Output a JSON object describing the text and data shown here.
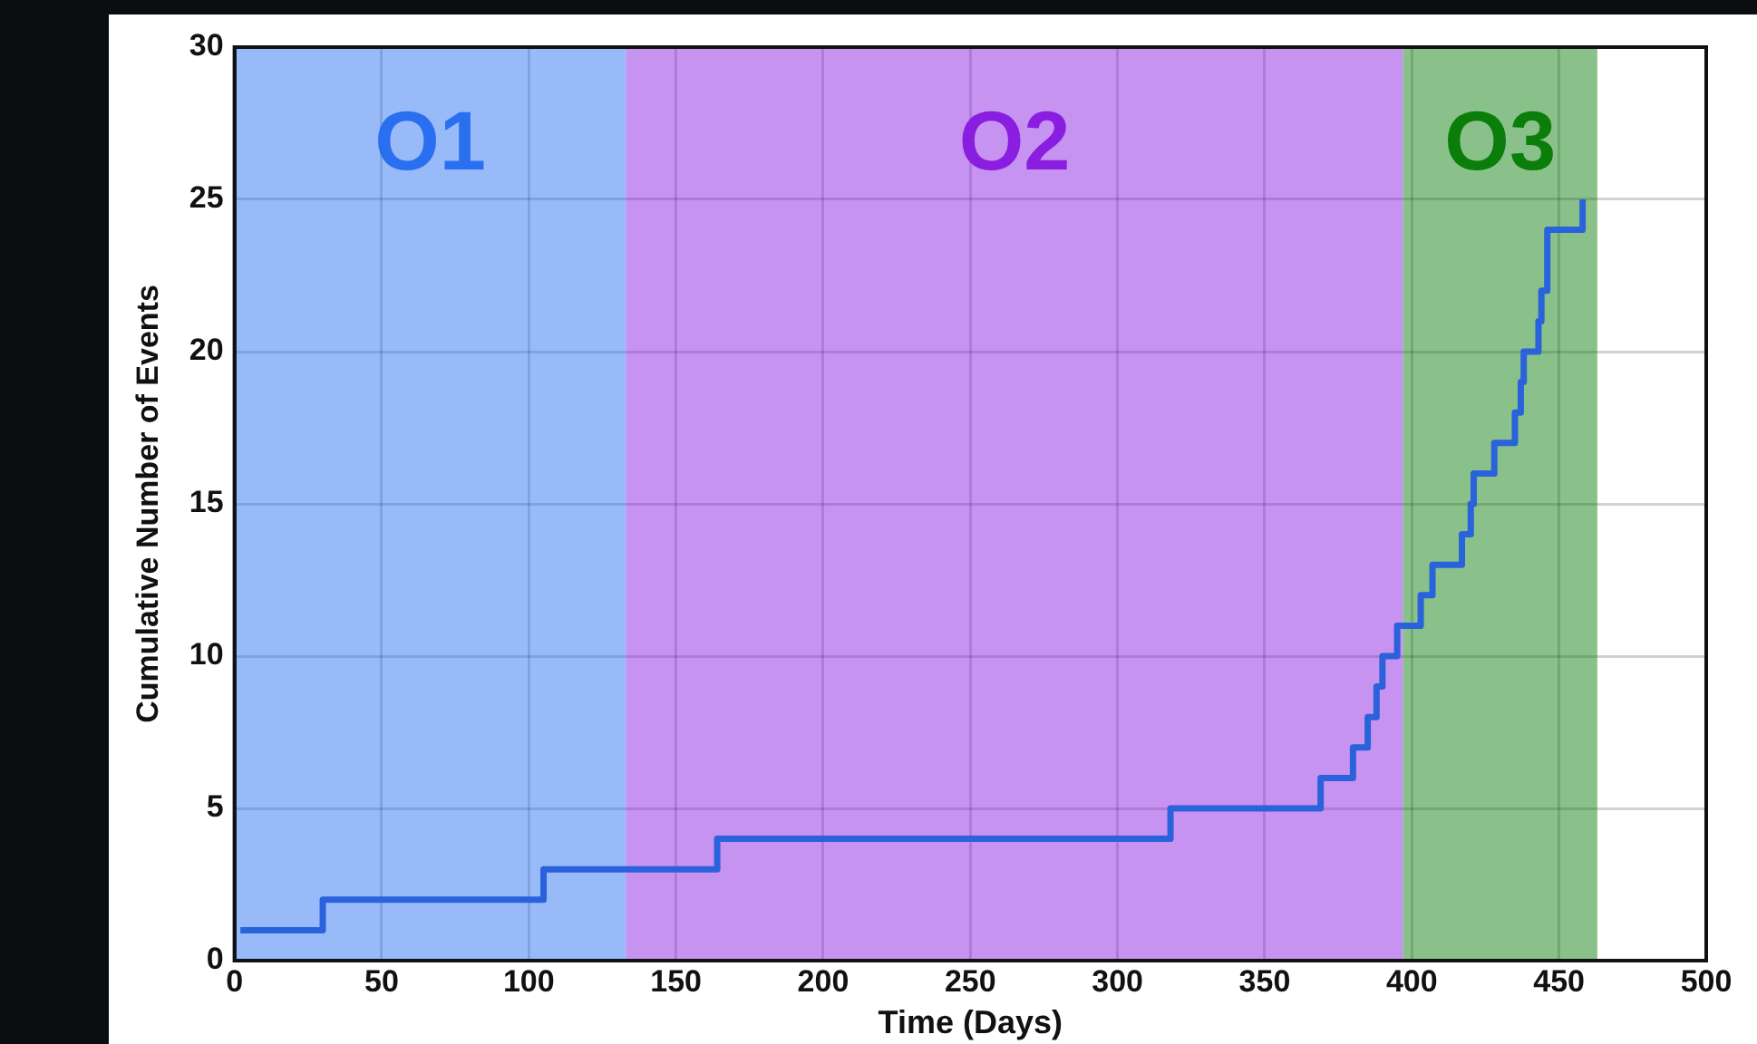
{
  "chart_data": {
    "type": "step",
    "xlabel": "Time (Days)",
    "ylabel": "Cumulative Number of Events",
    "x": [
      2,
      30,
      105,
      164,
      318,
      369,
      380,
      385,
      388,
      390,
      395,
      403,
      407,
      417,
      420,
      421,
      428,
      435,
      437,
      438,
      443,
      444,
      446,
      458
    ],
    "values": [
      1,
      2,
      3,
      4,
      5,
      6,
      7,
      8,
      9,
      10,
      11,
      12,
      13,
      14,
      15,
      16,
      17,
      18,
      19,
      20,
      21,
      22,
      24,
      25
    ],
    "color": "#2a62dc",
    "xlim": [
      0,
      500
    ],
    "xticks": [
      0,
      50,
      100,
      150,
      200,
      250,
      300,
      350,
      400,
      450,
      500
    ],
    "ylim": [
      0,
      30
    ],
    "yticks": [
      0,
      5,
      10,
      15,
      20,
      25,
      30
    ],
    "grid": true,
    "bands": [
      {
        "axis": "x",
        "from": 0,
        "to": 133,
        "label": "O1",
        "color": "#2a6ff0"
      },
      {
        "axis": "x",
        "from": 133,
        "to": 397,
        "label": "O2",
        "color": "#8a1ee0"
      },
      {
        "axis": "x",
        "from": 397,
        "to": 463,
        "label": "O3",
        "color": "#0a7d0a"
      }
    ]
  }
}
